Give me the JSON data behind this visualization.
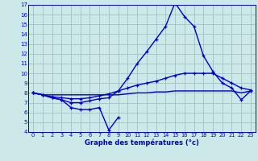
{
  "xlabel": "Graphe des températures (°c)",
  "hours": [
    0,
    1,
    2,
    3,
    4,
    5,
    6,
    7,
    8,
    9,
    10,
    11,
    12,
    13,
    14,
    15,
    16,
    17,
    18,
    19,
    20,
    21,
    22,
    23
  ],
  "line_main": [
    8.0,
    7.8,
    7.5,
    7.3,
    7.0,
    7.0,
    7.2,
    7.4,
    7.5,
    8.2,
    9.5,
    11.0,
    12.2,
    13.5,
    14.8,
    17.2,
    15.8,
    14.8,
    11.8,
    10.2,
    9.0,
    8.5,
    7.3,
    8.2
  ],
  "line_mid": [
    8.0,
    7.8,
    7.6,
    7.5,
    7.4,
    7.4,
    7.5,
    7.7,
    7.9,
    8.2,
    8.5,
    8.8,
    9.0,
    9.2,
    9.5,
    9.8,
    10.0,
    10.0,
    10.0,
    10.0,
    9.5,
    9.0,
    8.5,
    8.3
  ],
  "line_flat": [
    8.0,
    7.8,
    7.8,
    7.8,
    7.8,
    7.8,
    7.8,
    7.8,
    7.8,
    7.8,
    7.9,
    8.0,
    8.0,
    8.1,
    8.1,
    8.2,
    8.2,
    8.2,
    8.2,
    8.2,
    8.2,
    8.2,
    8.0,
    8.2
  ],
  "line_min_x": [
    0,
    1,
    2,
    3,
    4,
    5,
    6,
    7,
    8,
    9
  ],
  "line_min_y": [
    8.0,
    7.8,
    7.5,
    7.3,
    6.5,
    6.3,
    6.3,
    6.5,
    4.2,
    5.5
  ],
  "line_color": "#0000cc",
  "bg_color": "#cce8e8",
  "grid_color": "#99bbbb",
  "ylim": [
    4,
    17
  ],
  "yticks": [
    4,
    5,
    6,
    7,
    8,
    9,
    10,
    11,
    12,
    13,
    14,
    15,
    16,
    17
  ]
}
